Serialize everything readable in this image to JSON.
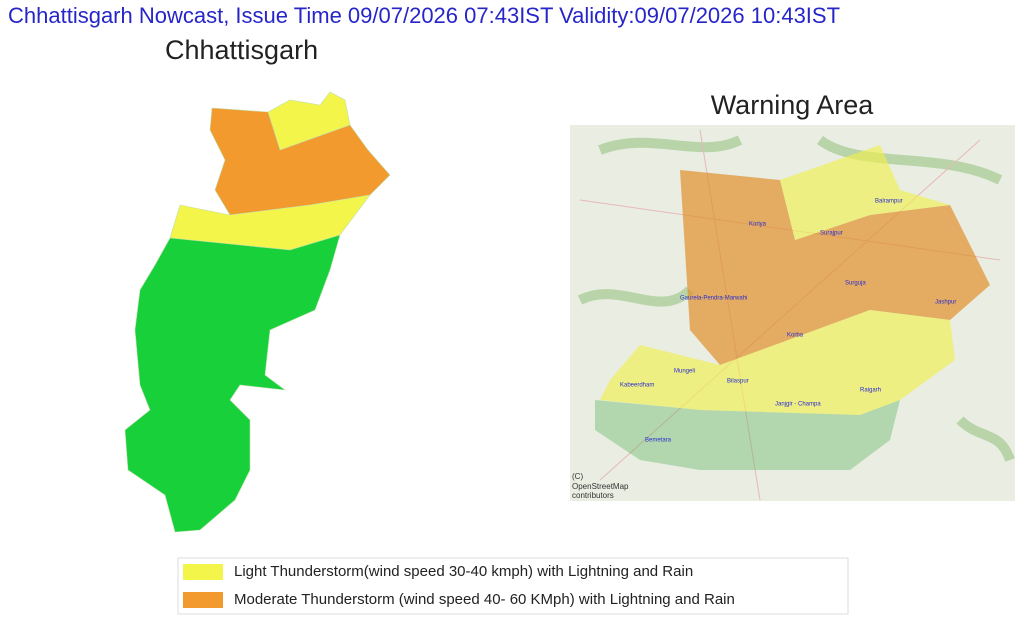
{
  "header": {
    "title": "Chhattisgarh Nowcast, Issue Time 09/07/2026 07:43IST  Validity:09/07/2026 10:43IST"
  },
  "state_map": {
    "title": "Chhattisgarh"
  },
  "warning_map": {
    "title": "Warning Area",
    "places": [
      "Koriya",
      "Surajpur",
      "Balrampur",
      "Surguja",
      "Jashpur",
      "Gaurela-Pendra-Marwahi",
      "Korba",
      "Mungeli",
      "Kabeerdham",
      "Bilaspur",
      "Raigarh",
      "Janjgir - Champa",
      "Bemetara"
    ],
    "attribution": [
      "(C)",
      "OpenStreetMap",
      "contributors"
    ]
  },
  "legend": [
    {
      "label": "Light Thunderstorm(wind speed 30-40 kmph) with Lightning and Rain",
      "color": "#f4f54a"
    },
    {
      "label": "Moderate Thunderstorm (wind speed 40- 60 KMph) with Lightning and Rain",
      "color": "#f29a2e"
    }
  ]
}
